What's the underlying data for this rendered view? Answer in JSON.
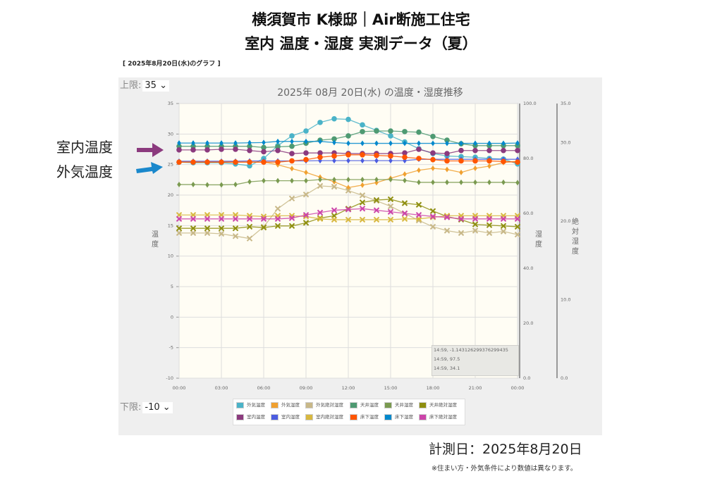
{
  "header": {
    "title_line1": "横須賀市 K様邸｜Air断施工住宅",
    "title_line2": "室内 温度・湿度 実測データ（夏）",
    "subtitle": "[ 2025年8月20日(水)のグラフ ]"
  },
  "controls": {
    "upper_label": "上限:",
    "upper_value": "35 ⌄",
    "lower_label": "下限:",
    "lower_value": "-10 ⌄"
  },
  "annotations": {
    "indoor": "室内温度",
    "outdoor": "外気温度",
    "indoor_color": "#8b3a7e",
    "outdoor_color": "#1a88cc"
  },
  "footer": {
    "date": "計測日：2025年8月20日",
    "note": "※住まい方・外気条件により数値は異なります。"
  },
  "tooltip": [
    "14:59, -1.1431262993762994​35",
    "14:59, 97.5",
    "14:59, 34.1"
  ],
  "chart_data": {
    "type": "line",
    "title": "2025年 08月 20日(水) の温度・湿度推移",
    "x": [
      "00:00",
      "01:00",
      "02:00",
      "03:00",
      "04:00",
      "05:00",
      "06:00",
      "07:00",
      "08:00",
      "09:00",
      "10:00",
      "11:00",
      "12:00",
      "13:00",
      "14:00",
      "15:00",
      "16:00",
      "17:00",
      "18:00",
      "19:00",
      "20:00",
      "21:00",
      "22:00",
      "23:00",
      "24:00"
    ],
    "xticks": [
      "00:00",
      "03:00",
      "06:00",
      "09:00",
      "12:00",
      "15:00",
      "18:00",
      "21:00",
      "00:00"
    ],
    "axes": {
      "temp": {
        "label": "温度",
        "range": [
          -10,
          35
        ],
        "ticks": [
          "35",
          "30",
          "25",
          "20",
          "15",
          "10",
          "5",
          "0",
          "-5",
          "-10"
        ]
      },
      "humidity": {
        "label": "湿度",
        "range": [
          0,
          100
        ],
        "ticks": [
          "100.0",
          "80.0",
          "60.0",
          "40.0",
          "20.0",
          "0.0"
        ]
      },
      "abs": {
        "label": "絶対湿度",
        "range": [
          0,
          35
        ],
        "ticks": [
          "35.0",
          "30.0",
          "20.0",
          "10.0",
          "0.0"
        ]
      }
    },
    "grid": true,
    "legend_position": "bottom",
    "series": [
      {
        "name": "外気温度",
        "axis": "temp",
        "marker": "circle",
        "color": "#4ab3c8",
        "values": [
          25.4,
          25.3,
          25.3,
          25.3,
          25.1,
          24.8,
          26.0,
          28.1,
          29.7,
          30.5,
          31.9,
          32.5,
          32.4,
          31.5,
          30.6,
          29.7,
          28.7,
          27.6,
          26.8,
          26.4,
          26.3,
          26.2,
          26.0,
          25.9,
          25.1
        ]
      },
      {
        "name": "外気湿度",
        "axis": "humidity",
        "marker": "diamond",
        "color": "#f0a030",
        "values": [
          78.7,
          78.7,
          78.7,
          78.7,
          78.7,
          78.7,
          78.7,
          77.7,
          76.3,
          74.9,
          73.2,
          71.5,
          69.4,
          70.3,
          71.2,
          72.8,
          74.3,
          75.7,
          76.4,
          76.0,
          74.9,
          76.4,
          77.2,
          78.5,
          79.0
        ]
      },
      {
        "name": "外気絶対湿度",
        "axis": "abs",
        "marker": "x",
        "color": "#c8b888",
        "values": [
          18.5,
          18.5,
          18.5,
          18.4,
          18.1,
          17.8,
          19.3,
          21.6,
          22.9,
          23.4,
          24.5,
          24.4,
          23.9,
          23.3,
          22.6,
          21.9,
          21.0,
          20.1,
          19.3,
          18.8,
          18.5,
          18.8,
          18.5,
          18.7,
          18.3
        ]
      },
      {
        "name": "天井温度",
        "axis": "temp",
        "marker": "circle",
        "color": "#4e9a72",
        "values": [
          28.0,
          28.0,
          28.0,
          28.0,
          28.0,
          28.0,
          27.8,
          27.9,
          28.0,
          28.5,
          29.0,
          29.2,
          29.7,
          30.4,
          30.5,
          30.5,
          30.4,
          30.3,
          29.6,
          29.0,
          28.4,
          28.1,
          28.1,
          28.1,
          28.1
        ]
      },
      {
        "name": "天井湿度",
        "axis": "humidity",
        "marker": "diamond",
        "color": "#7a9a50",
        "values": [
          70.5,
          70.5,
          70.4,
          70.4,
          70.5,
          71.5,
          71.9,
          71.9,
          71.9,
          71.9,
          72.3,
          72.3,
          72.3,
          72.3,
          72.3,
          72.3,
          72.0,
          71.3,
          71.3,
          71.3,
          71.3,
          71.3,
          71.3,
          71.3,
          71.2
        ]
      },
      {
        "name": "天井絶対湿度",
        "axis": "abs",
        "marker": "x",
        "color": "#8f8f10",
        "values": [
          19.1,
          19.1,
          19.1,
          19.1,
          19.1,
          19.3,
          19.2,
          19.4,
          19.4,
          19.8,
          20.4,
          20.7,
          21.6,
          22.4,
          22.7,
          22.8,
          22.3,
          22.1,
          21.3,
          20.6,
          20.2,
          19.6,
          19.5,
          19.4,
          19.3
        ]
      },
      {
        "name": "室内温度",
        "axis": "temp",
        "marker": "circle",
        "color": "#8b3a7e",
        "values": [
          27.4,
          27.4,
          27.4,
          27.5,
          27.5,
          27.3,
          27.1,
          27.3,
          26.8,
          26.9,
          26.9,
          26.9,
          26.8,
          26.8,
          26.8,
          26.8,
          26.9,
          27.5,
          26.9,
          26.8,
          27.3,
          27.3,
          27.3,
          27.3,
          27.3
        ]
      },
      {
        "name": "室内湿度",
        "axis": "humidity",
        "marker": "diamond",
        "color": "#4c5ce0",
        "values": [
          79.0,
          79.0,
          79.0,
          79.0,
          79.0,
          79.1,
          79.1,
          79.1,
          79.1,
          79.1,
          79.2,
          79.2,
          79.2,
          79.2,
          79.2,
          79.2,
          79.2,
          79.7,
          79.7,
          79.7,
          79.7,
          79.7,
          79.7,
          79.7,
          79.7
        ]
      },
      {
        "name": "室内絶対湿度",
        "axis": "abs",
        "marker": "x",
        "color": "#d8b840",
        "values": [
          20.8,
          20.8,
          20.8,
          20.8,
          20.8,
          20.7,
          20.6,
          20.7,
          20.7,
          20.6,
          20.3,
          20.2,
          20.2,
          20.2,
          20.2,
          20.2,
          20.3,
          20.3,
          20.5,
          20.7,
          20.7,
          20.7,
          20.7,
          20.7,
          20.7
        ]
      },
      {
        "name": "床下温度",
        "axis": "temp",
        "marker": "circle",
        "color": "#ff5500",
        "values": [
          25.4,
          25.4,
          25.4,
          25.4,
          25.4,
          25.4,
          25.4,
          25.4,
          25.6,
          25.8,
          26.2,
          26.4,
          26.6,
          26.6,
          26.5,
          26.4,
          26.2,
          26.0,
          25.8,
          25.6,
          25.6,
          25.6,
          25.6,
          25.5,
          25.4
        ]
      },
      {
        "name": "床下湿度",
        "axis": "humidity",
        "marker": "diamond",
        "color": "#0088cc",
        "values": [
          85.6,
          85.6,
          85.6,
          85.6,
          85.6,
          85.7,
          85.8,
          86.2,
          86.2,
          86.2,
          86.2,
          85.8,
          85.5,
          85.5,
          85.5,
          85.5,
          85.5,
          85.5,
          85.5,
          85.5,
          85.5,
          85.5,
          85.5,
          85.5,
          85.6
        ]
      },
      {
        "name": "床下絶対湿度",
        "axis": "abs",
        "marker": "x",
        "color": "#cc44aa",
        "values": [
          20.3,
          20.3,
          20.3,
          20.3,
          20.3,
          20.3,
          20.3,
          20.3,
          20.4,
          20.8,
          21.1,
          21.4,
          21.5,
          21.6,
          21.4,
          21.2,
          21.0,
          20.8,
          20.6,
          20.5,
          20.3,
          20.3,
          20.3,
          20.3,
          20.3
        ]
      }
    ]
  }
}
